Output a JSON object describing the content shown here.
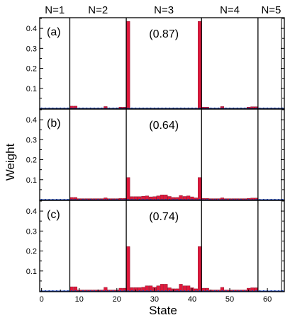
{
  "chart_data": {
    "type": "bar",
    "xlabel": "State",
    "ylabel": "Weight",
    "xlim": [
      -0.5,
      64.5
    ],
    "ylim": [
      0,
      0.45
    ],
    "xticks": [
      0,
      10,
      20,
      30,
      40,
      50,
      60
    ],
    "yticks": [
      0.1,
      0.2,
      0.3,
      0.4
    ],
    "group_separators": [
      7.5,
      22.5,
      42.5,
      57.5
    ],
    "group_labels": [
      {
        "text": "N=1",
        "center": 3.5
      },
      {
        "text": "N=2",
        "center": 15
      },
      {
        "text": "N=3",
        "center": 32.5
      },
      {
        "text": "N=4",
        "center": 50
      },
      {
        "text": "N=5",
        "center": 61
      }
    ],
    "bar_color": "#e0183c",
    "marker_color": "#1a3ea8",
    "panels": [
      {
        "label": "(a)",
        "annotation": "(0.87)",
        "values": [
          0,
          0,
          0,
          0,
          0,
          0,
          0,
          0,
          0.011,
          0.011,
          0,
          0,
          0,
          0,
          0,
          0,
          0,
          0.009,
          0,
          0,
          0,
          0.006,
          0.006,
          0.435,
          0,
          0,
          0,
          0,
          0,
          0,
          0,
          0,
          0,
          0,
          0,
          0,
          0,
          0,
          0,
          0,
          0,
          0,
          0.435,
          0.006,
          0.006,
          0,
          0,
          0,
          0.009,
          0,
          0,
          0,
          0,
          0,
          0,
          0.006,
          0.008,
          0.008,
          0,
          0,
          0,
          0,
          0,
          0,
          0
        ]
      },
      {
        "label": "(b)",
        "annotation": "(0.64)",
        "values": [
          0,
          0,
          0,
          0,
          0,
          0,
          0,
          0,
          0.011,
          0.011,
          0.005,
          0.005,
          0.005,
          0.005,
          0.005,
          0.005,
          0.005,
          0.009,
          0.005,
          0.005,
          0.005,
          0.006,
          0.006,
          0.111,
          0.015,
          0.015,
          0.015,
          0.017,
          0.019,
          0.014,
          0.015,
          0.019,
          0.024,
          0.024,
          0.016,
          0.011,
          0.011,
          0.021,
          0.016,
          0.019,
          0.014,
          0.009,
          0.111,
          0.006,
          0.006,
          0.005,
          0.005,
          0.005,
          0.009,
          0.005,
          0.005,
          0.005,
          0.005,
          0.005,
          0.005,
          0.006,
          0.008,
          0.008,
          0,
          0,
          0,
          0,
          0,
          0,
          0
        ]
      },
      {
        "label": "(c)",
        "annotation": "(0.74)",
        "values": [
          0,
          0,
          0,
          0,
          0,
          0,
          0,
          0,
          0.021,
          0.021,
          0.005,
          0.005,
          0.005,
          0.005,
          0.005,
          0.005,
          0.005,
          0.018,
          0.005,
          0.005,
          0.005,
          0.014,
          0.014,
          0.222,
          0.017,
          0.017,
          0.017,
          0.019,
          0.026,
          0.026,
          0.019,
          0.026,
          0.034,
          0.034,
          0.016,
          0.011,
          0.011,
          0.034,
          0.026,
          0.026,
          0.016,
          0.011,
          0.222,
          0.014,
          0.014,
          0.005,
          0.005,
          0.005,
          0.018,
          0.005,
          0.005,
          0.005,
          0.005,
          0.005,
          0.005,
          0.014,
          0.016,
          0.016,
          0,
          0,
          0,
          0,
          0,
          0,
          0
        ]
      }
    ]
  }
}
